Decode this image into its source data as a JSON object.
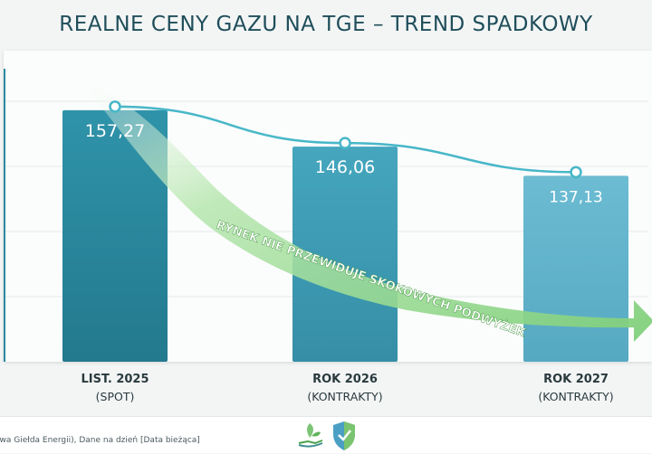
{
  "chart_data": {
    "type": "bar",
    "title": "REALNE CENY GAZU NA TGE – TREND SPADKOWY",
    "categories": [
      {
        "main": "LIST. 2025",
        "sub": "(SPOT)"
      },
      {
        "main": "ROK 2026",
        "sub": "(KONTRAKTY)"
      },
      {
        "main": "ROK 2027",
        "sub": "(KONTRAKTY)"
      }
    ],
    "values": [
      157.27,
      146.06,
      137.13
    ],
    "value_labels": [
      "157,27",
      "146,06",
      "137,13"
    ],
    "trend_line": true,
    "ylim": [
      80,
      170
    ],
    "grid": true,
    "annotation": "RYNEK NIE PRZEWIDUJE SKOKOWYCH PODWYŻEK",
    "colors": {
      "bar_dark": "#2a8aa0",
      "bar_mid": "#3f9fb8",
      "bar_light": "#5fb3cc",
      "line": "#47b7c8",
      "arrow": "#9bdb95",
      "title": "#1f4e5a"
    }
  },
  "footer": {
    "source": "owa Giełda Energii), Dane na dzień [Data bieżąca]",
    "icons": [
      "hand-leaf-icon",
      "shield-check-icon"
    ]
  }
}
